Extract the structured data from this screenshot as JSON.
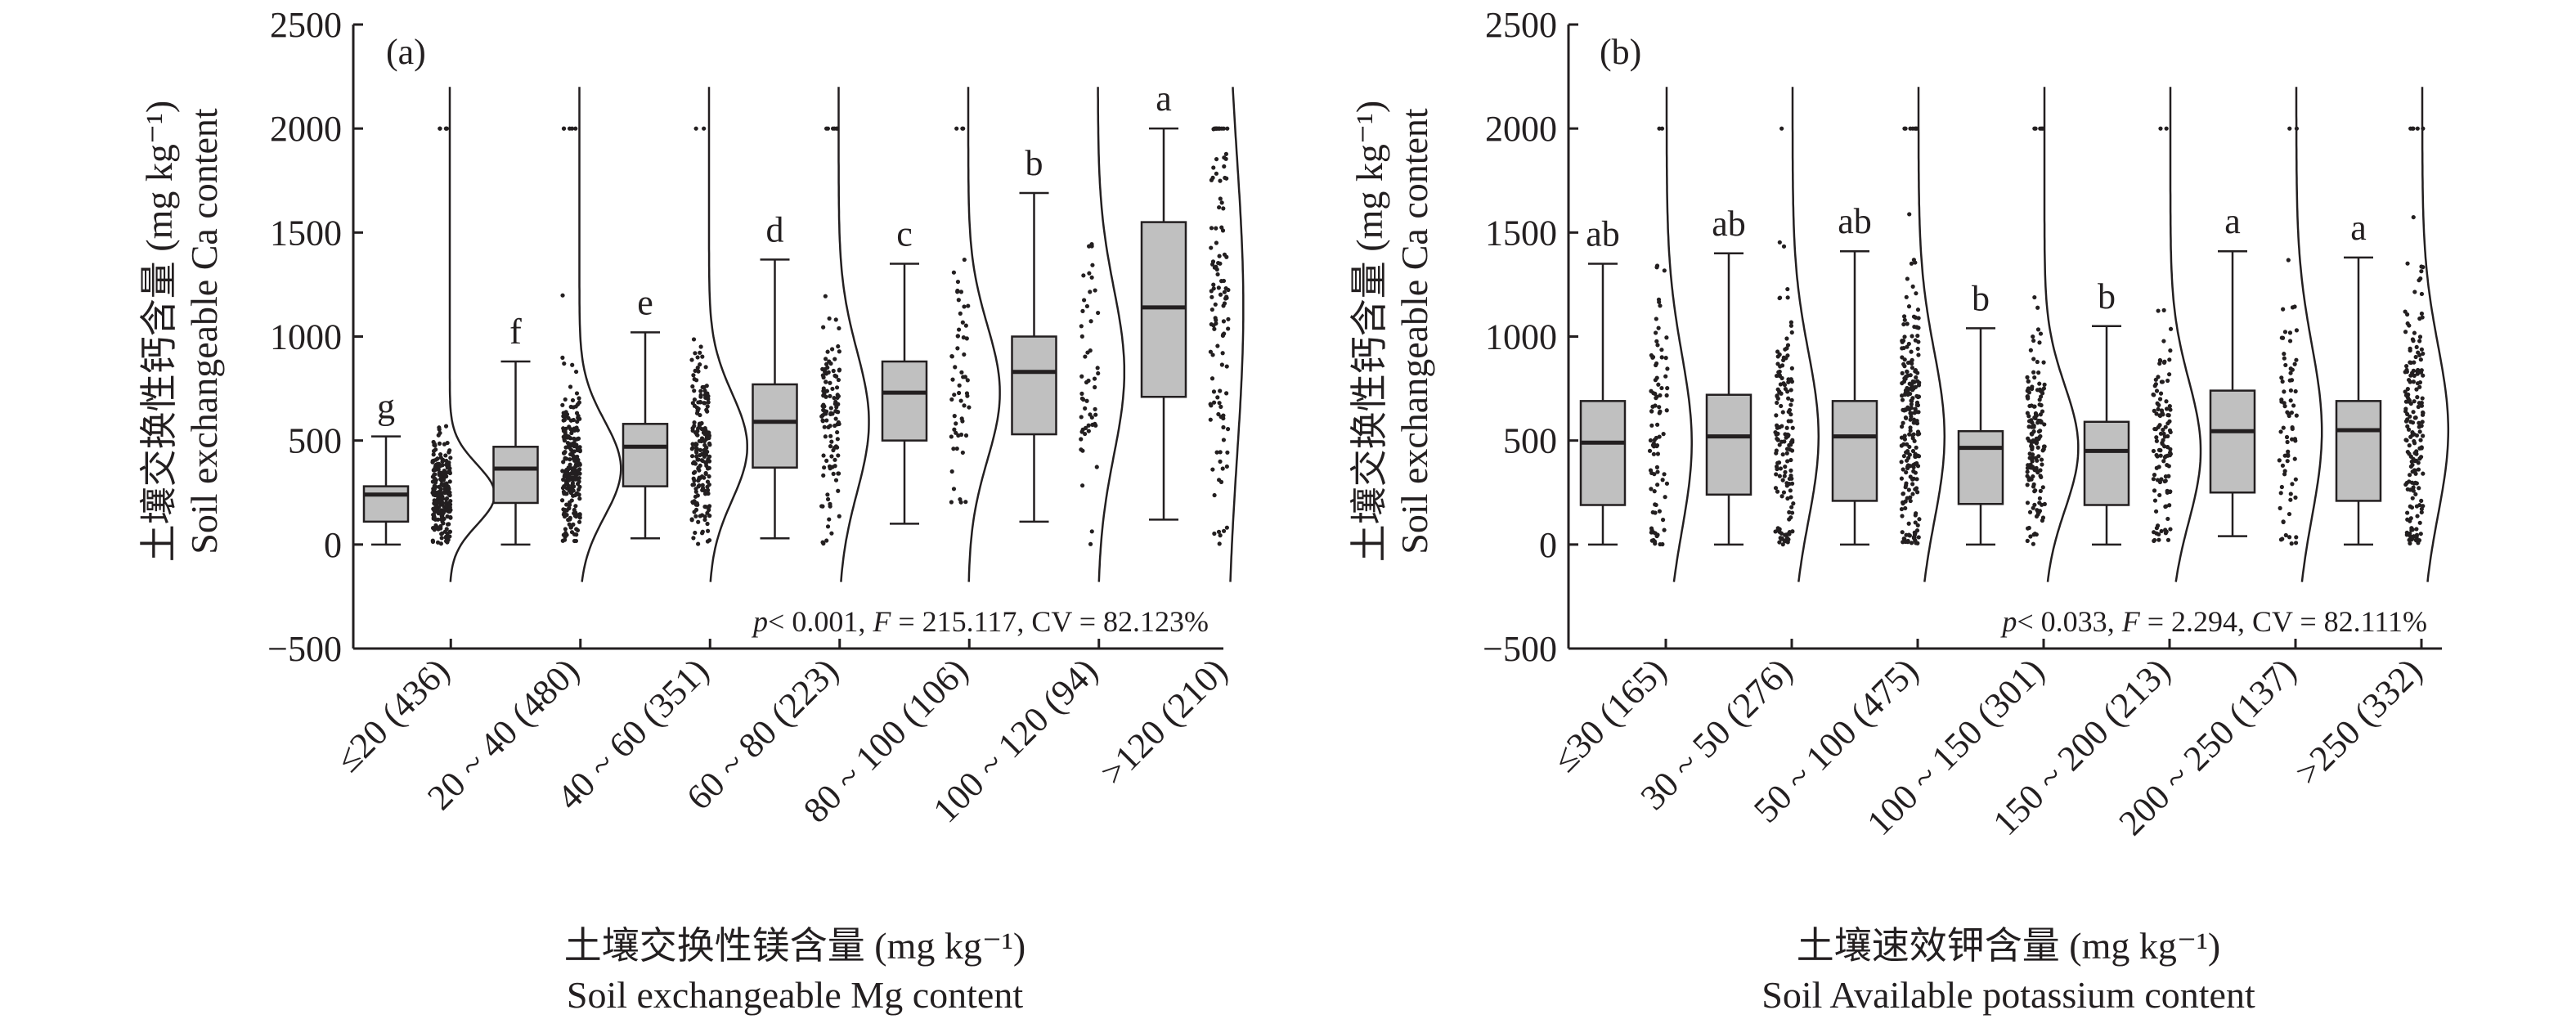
{
  "colors": {
    "box_fill": "#c0c0c0",
    "ink": "#231f20",
    "points": "#231f20"
  },
  "chart_data": [
    {
      "type": "box",
      "panel_label": "(a)",
      "ylabel_cn": "土壤交换性钙含量 (mg kg⁻¹)",
      "ylabel_en": "Soil exchangeable Ca content",
      "xlabel_cn": "土壤交换性镁含量 (mg kg⁻¹)",
      "xlabel_en": "Soil exchangeable Mg content",
      "ylim": [
        -500,
        2500
      ],
      "yticks": [
        2500,
        2000,
        1500,
        1000,
        500,
        0,
        -500
      ],
      "stats": {
        "p": "< 0.001",
        "F": "215.117",
        "CV": "82.123%"
      },
      "categories": [
        "≤20 (436)",
        "20 ~ 40 (480)",
        "40 ~ 60 (351)",
        "60 ~ 80 (223)",
        "80 ~ 100 (106)",
        "100 ~ 120 (94)",
        ">120 (210)"
      ],
      "n": [
        436,
        480,
        351,
        223,
        106,
        94,
        210
      ],
      "significance": [
        "g",
        "f",
        "e",
        "d",
        "c",
        "b",
        "a"
      ],
      "boxes": [
        {
          "whisker_low": 0,
          "q1": 110,
          "median": 240,
          "q3": 280,
          "whisker_high": 520
        },
        {
          "whisker_low": 0,
          "q1": 200,
          "median": 365,
          "q3": 470,
          "whisker_high": 880
        },
        {
          "whisker_low": 30,
          "q1": 280,
          "median": 470,
          "q3": 580,
          "whisker_high": 1020
        },
        {
          "whisker_low": 30,
          "q1": 370,
          "median": 590,
          "q3": 770,
          "whisker_high": 1370
        },
        {
          "whisker_low": 100,
          "q1": 500,
          "median": 730,
          "q3": 880,
          "whisker_high": 1350
        },
        {
          "whisker_low": 110,
          "q1": 530,
          "median": 830,
          "q3": 1000,
          "whisker_high": 1690
        },
        {
          "whisker_low": 120,
          "q1": 710,
          "median": 1140,
          "q3": 1550,
          "whisker_high": 2000
        }
      ]
    },
    {
      "type": "box",
      "panel_label": "(b)",
      "ylabel_cn": "土壤交换性钙含量 (mg kg⁻¹)",
      "ylabel_en": "Soil exchangeable Ca content",
      "xlabel_cn": "土壤速效钾含量 (mg kg⁻¹)",
      "xlabel_en": "Soil Available potassium content",
      "ylim": [
        -500,
        2500
      ],
      "yticks": [
        2500,
        2000,
        1500,
        1000,
        500,
        0,
        -500
      ],
      "stats": {
        "p": "< 0.033",
        "F": "2.294",
        "CV": "82.111%"
      },
      "categories": [
        "≤30 (165)",
        "30 ~ 50 (276)",
        "50 ~ 100 (475)",
        "100 ~ 150 (301)",
        "150 ~ 200 (213)",
        "200 ~ 250 (137)",
        ">250 (332)"
      ],
      "n": [
        165,
        276,
        475,
        301,
        213,
        137,
        332
      ],
      "significance": [
        "ab",
        "ab",
        "ab",
        "b",
        "b",
        "a",
        "a"
      ],
      "boxes": [
        {
          "whisker_low": 0,
          "q1": 190,
          "median": 490,
          "q3": 690,
          "whisker_high": 1350
        },
        {
          "whisker_low": 0,
          "q1": 240,
          "median": 520,
          "q3": 720,
          "whisker_high": 1400
        },
        {
          "whisker_low": 0,
          "q1": 210,
          "median": 520,
          "q3": 690,
          "whisker_high": 1410
        },
        {
          "whisker_low": 0,
          "q1": 195,
          "median": 465,
          "q3": 545,
          "whisker_high": 1040
        },
        {
          "whisker_low": 0,
          "q1": 190,
          "median": 450,
          "q3": 590,
          "whisker_high": 1050
        },
        {
          "whisker_low": 40,
          "q1": 250,
          "median": 545,
          "q3": 740,
          "whisker_high": 1410
        },
        {
          "whisker_low": 0,
          "q1": 210,
          "median": 550,
          "q3": 690,
          "whisker_high": 1380
        }
      ]
    }
  ]
}
